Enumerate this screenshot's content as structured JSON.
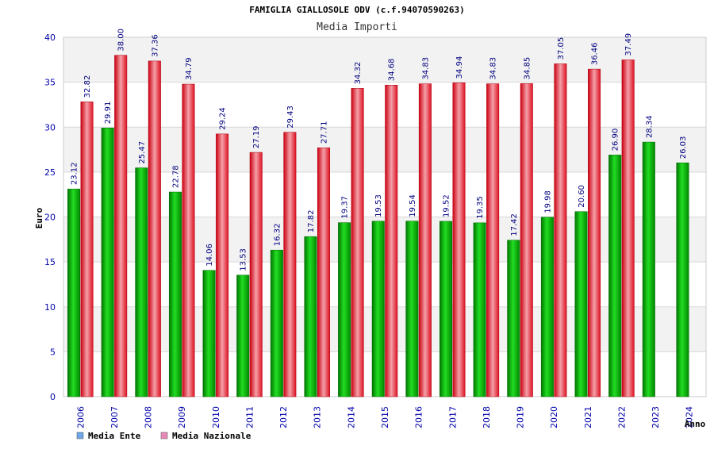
{
  "chart_data": {
    "type": "bar",
    "title": "FAMIGLIA GIALLOSOLE ODV (c.f.94070590263)",
    "subtitle": "Media Importi",
    "xlabel": "Anno",
    "ylabel": "Euro",
    "ylim": [
      0,
      40
    ],
    "yticks": [
      "0",
      "5",
      "10",
      "15",
      "20",
      "25",
      "30",
      "35",
      "40"
    ],
    "categories": [
      "2006",
      "2007",
      "2008",
      "2009",
      "2010",
      "2011",
      "2012",
      "2013",
      "2014",
      "2015",
      "2016",
      "2017",
      "2018",
      "2019",
      "2020",
      "2021",
      "2022",
      "2023",
      "2024"
    ],
    "series": [
      {
        "name": "Media Ente",
        "values": [
          23.12,
          29.91,
          25.47,
          22.78,
          14.06,
          13.53,
          16.32,
          17.82,
          19.37,
          19.53,
          19.54,
          19.52,
          19.35,
          17.42,
          19.98,
          20.6,
          26.9,
          28.34,
          26.03
        ],
        "labels": [
          "23.12",
          "29.91",
          "25.47",
          "22.78",
          "14.06",
          "13.53",
          "16.32",
          "17.82",
          "19.37",
          "19.53",
          "19.54",
          "19.52",
          "19.35",
          "17.42",
          "19.98",
          "20.60",
          "26.90",
          "28.34",
          "26.03"
        ]
      },
      {
        "name": "Media Nazionale",
        "values": [
          32.82,
          38.0,
          37.36,
          34.79,
          29.24,
          27.19,
          29.43,
          27.71,
          34.32,
          34.68,
          34.83,
          34.94,
          34.83,
          34.85,
          37.05,
          36.46,
          37.49,
          null,
          null
        ],
        "labels": [
          "32.82",
          "38.00",
          "37.36",
          "34.79",
          "29.24",
          "27.19",
          "29.43",
          "27.71",
          "34.32",
          "34.68",
          "34.83",
          "34.94",
          "34.83",
          "34.85",
          "37.05",
          "36.46",
          "37.49",
          "",
          ""
        ]
      }
    ],
    "legend": [
      {
        "name": "Media Ente",
        "color": "#6ea6e8"
      },
      {
        "name": "Media Nazionale",
        "color": "#e88ab8"
      }
    ],
    "colors": {
      "ente": "#00aa00",
      "nazionale": "#ee2233",
      "grid_band": "#f2f2f2",
      "grid_line": "#d8d8d8"
    }
  }
}
